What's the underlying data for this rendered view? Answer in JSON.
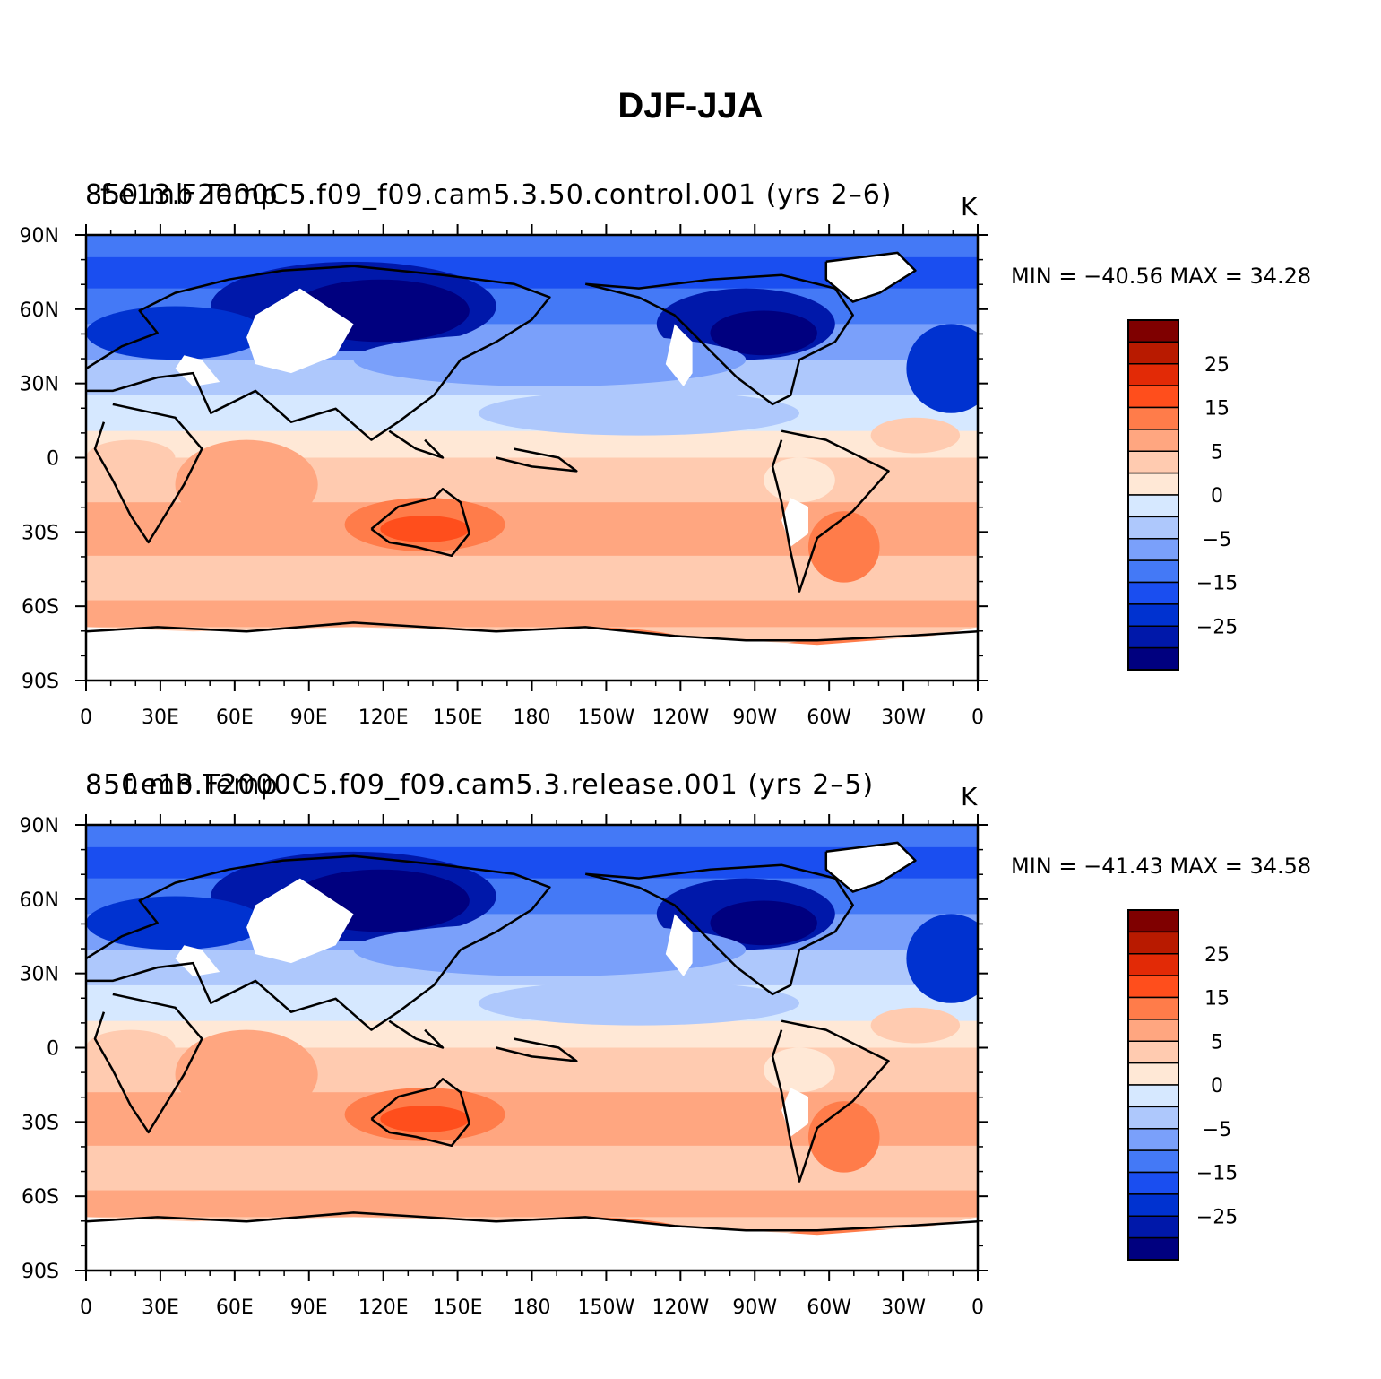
{
  "title": "DJF-JJA",
  "colors": {
    "scale": [
      "#00007f",
      "#0018aa",
      "#0032d0",
      "#1a4ef0",
      "#4479f6",
      "#7aa0fa",
      "#aec8fc",
      "#d6e8ff",
      "#ffe8d6",
      "#ffcbb0",
      "#ffa680",
      "#ff7c4a",
      "#ff4e1c",
      "#e22a06",
      "#b81a00",
      "#7f0000"
    ],
    "land_missing": "#ffffff",
    "coast": "#000000"
  },
  "axes": {
    "x_ticks": [
      "0",
      "30E",
      "60E",
      "90E",
      "120E",
      "150E",
      "180",
      "150W",
      "120W",
      "90W",
      "60W",
      "30W",
      "0"
    ],
    "y_ticks": [
      "90N",
      "60N",
      "30N",
      "0",
      "30S",
      "60S",
      "90S"
    ]
  },
  "colorbar_labels": [
    "25",
    "15",
    "5",
    "0",
    "−5",
    "−15",
    "−25"
  ],
  "panels": [
    {
      "left_string": "850 mb Temp",
      "center_string": "f.e13.F2000C5.f09_f09.cam5.3.50.control.001 (yrs 2–6)",
      "units": "K",
      "min_max": "MIN = −40.56 MAX =   34.28"
    },
    {
      "left_string": "850 mb Temp",
      "center_string": "f.e13.F2000C5.f09_f09.cam5.3.release.001 (yrs 2–5)",
      "units": "K",
      "min_max": "MIN = −41.43 MAX =   34.58"
    }
  ]
}
